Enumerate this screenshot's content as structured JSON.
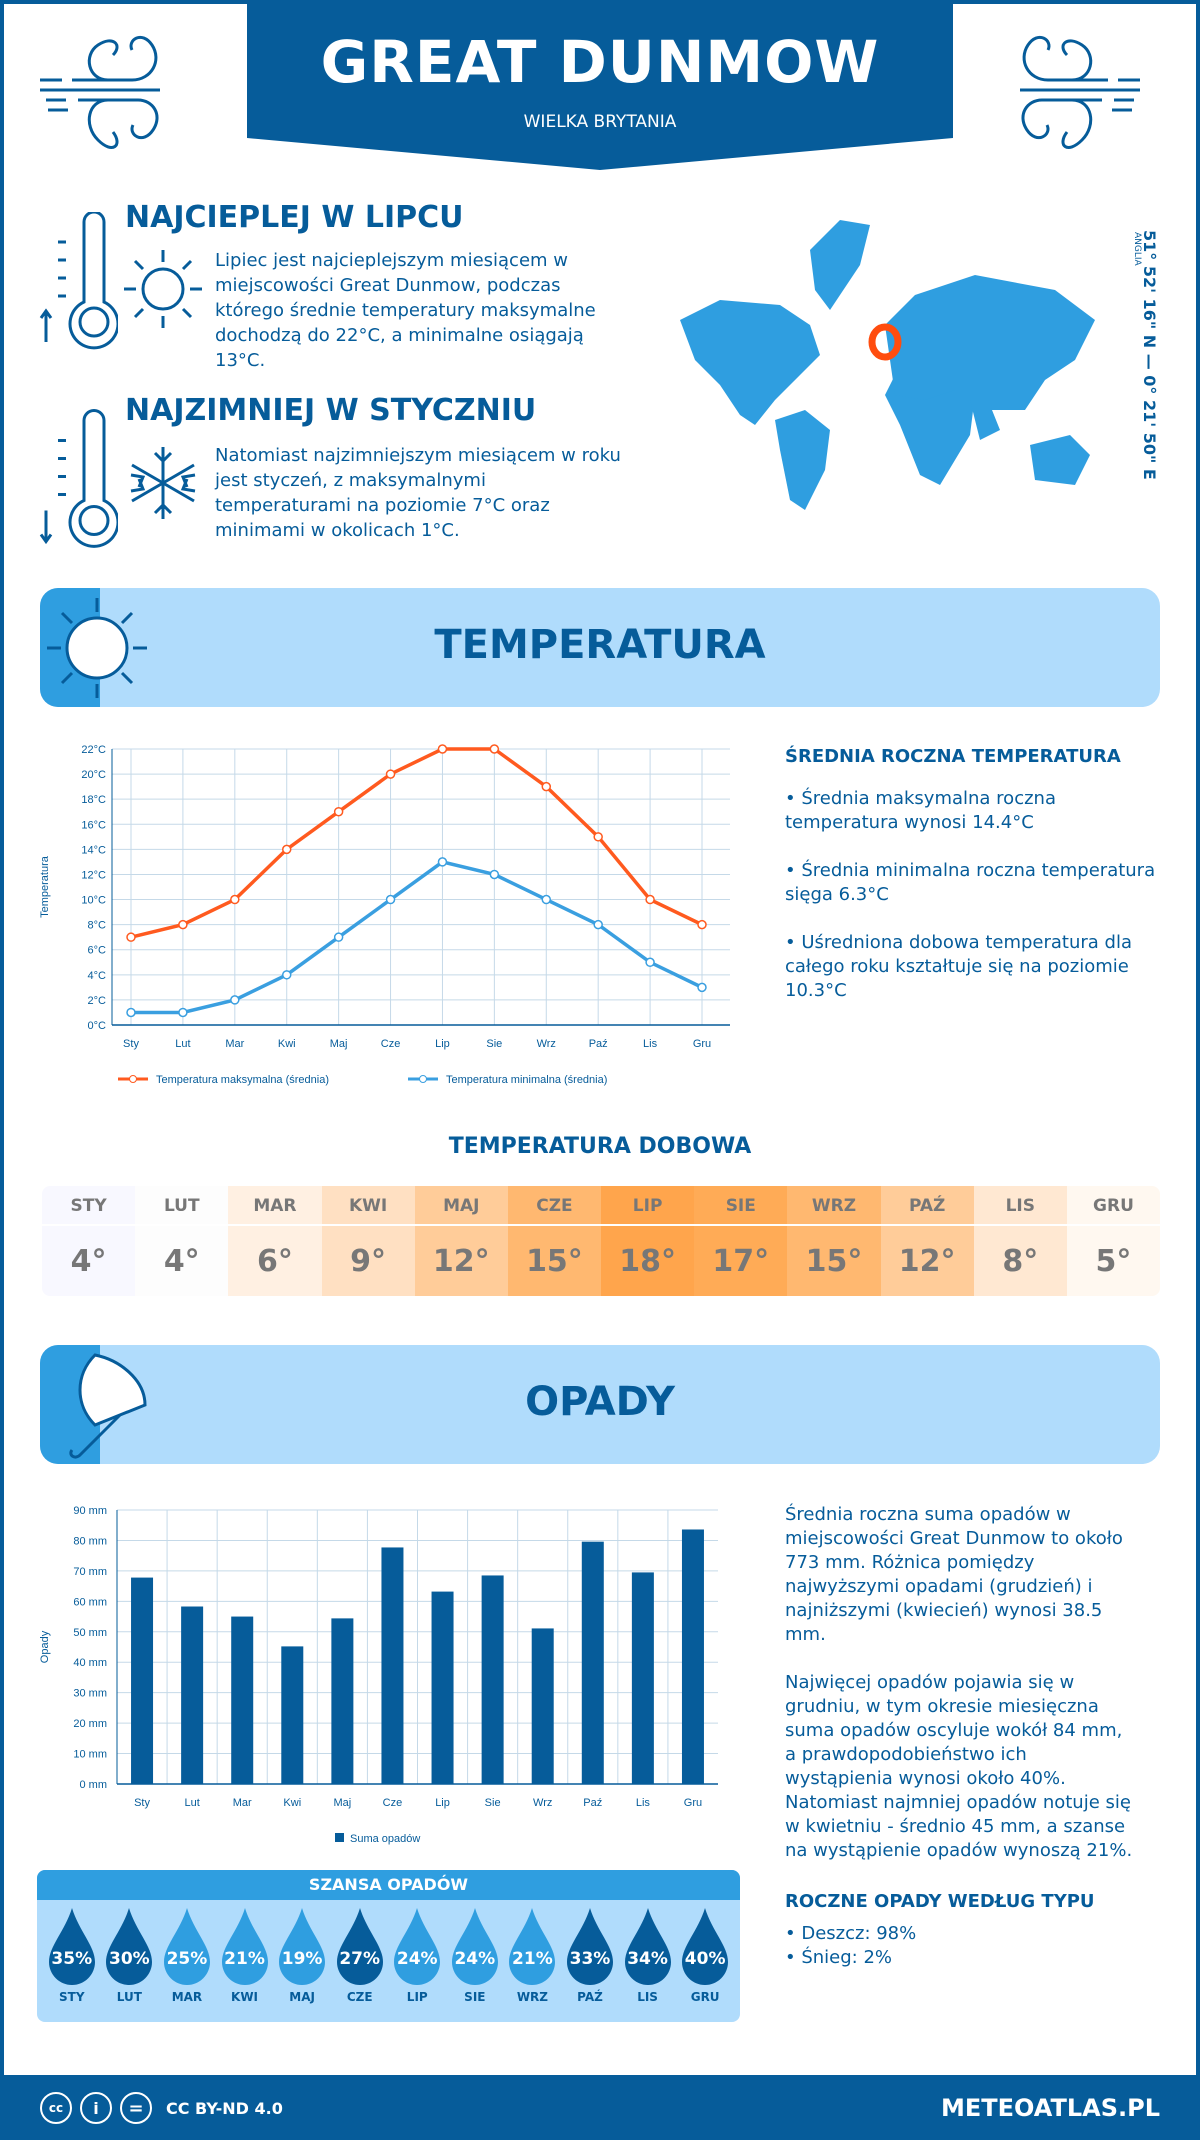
{
  "header": {
    "title": "GREAT DUNMOW",
    "subtitle": "WIELKA BRYTANIA"
  },
  "hottest": {
    "heading": "NAJCIEPLEJ W LIPCU",
    "text": "Lipiec jest najcieplejszym miesiącem w miejscowości Great Dunmow, podczas którego średnie temperatury maksymalne dochodzą do 22°C, a minimalne osiągają 13°C."
  },
  "coldest": {
    "heading": "NAJZIMNIEJ W STYCZNIU",
    "text": "Natomiast najzimniejszym miesiącem w roku jest styczeń, z maksymalnymi temperaturami na poziomie 7°C oraz minimami w okolicach 1°C."
  },
  "location": {
    "coords": "51° 52' 16\" N — 0° 21' 50\" E",
    "region": "ANGLIA"
  },
  "temperature": {
    "section_title": "TEMPERATURA",
    "summary_heading": "ŚREDNIA ROCZNA TEMPERATURA",
    "bullets": [
      "• Średnia maksymalna roczna temperatura wynosi 14.4°C",
      "• Średnia minimalna roczna temperatura sięga 6.3°C",
      "• Uśredniona dobowa temperatura dla całego roku kształtuje się na poziomie 10.3°C"
    ],
    "daily_title": "TEMPERATURA DOBOWA",
    "daily": [
      {
        "m": "STY",
        "v": "4°",
        "c": "#f8f8ff"
      },
      {
        "m": "LUT",
        "v": "4°",
        "c": "#fdfdfd"
      },
      {
        "m": "MAR",
        "v": "6°",
        "c": "#fff0e2"
      },
      {
        "m": "KWI",
        "v": "9°",
        "c": "#ffe0c2"
      },
      {
        "m": "MAJ",
        "v": "12°",
        "c": "#ffcc99"
      },
      {
        "m": "CZE",
        "v": "15°",
        "c": "#ffb870"
      },
      {
        "m": "LIP",
        "v": "18°",
        "c": "#ffa54c"
      },
      {
        "m": "SIE",
        "v": "17°",
        "c": "#ffab56"
      },
      {
        "m": "WRZ",
        "v": "15°",
        "c": "#ffb870"
      },
      {
        "m": "PAŹ",
        "v": "12°",
        "c": "#ffcc99"
      },
      {
        "m": "LIS",
        "v": "8°",
        "c": "#ffe8d2"
      },
      {
        "m": "GRU",
        "v": "5°",
        "c": "#fff8f0"
      }
    ]
  },
  "precip": {
    "section_title": "OPADY",
    "text1": "Średnia roczna suma opadów w miejscowości Great Dunmow to około 773 mm. Różnica pomiędzy najwyższymi opadami (grudzień) i najniższymi (kwiecień) wynosi 38.5 mm.",
    "text2": "Najwięcej opadów pojawia się w grudniu, w tym okresie miesięczna suma opadów oscyluje wokół 84 mm, a prawdopodobieństwo ich wystąpienia wynosi około 40%. Natomiast najmniej opadów notuje się w kwietniu - średnio 45 mm, a szanse na wystąpienie opadów wynoszą 21%.",
    "chance_title": "SZANSA OPADÓW",
    "chance": [
      {
        "m": "STY",
        "v": "35%",
        "dark": true
      },
      {
        "m": "LUT",
        "v": "30%",
        "dark": true
      },
      {
        "m": "MAR",
        "v": "25%",
        "dark": false
      },
      {
        "m": "KWI",
        "v": "21%",
        "dark": false
      },
      {
        "m": "MAJ",
        "v": "19%",
        "dark": false
      },
      {
        "m": "CZE",
        "v": "27%",
        "dark": true
      },
      {
        "m": "LIP",
        "v": "24%",
        "dark": false
      },
      {
        "m": "SIE",
        "v": "24%",
        "dark": false
      },
      {
        "m": "WRZ",
        "v": "21%",
        "dark": false
      },
      {
        "m": "PAŹ",
        "v": "33%",
        "dark": true
      },
      {
        "m": "LIS",
        "v": "34%",
        "dark": true
      },
      {
        "m": "GRU",
        "v": "40%",
        "dark": true
      }
    ],
    "type_heading": "ROCZNE OPADY WEDŁUG TYPU",
    "types": [
      "• Deszcz: 98%",
      "• Śnieg: 2%"
    ]
  },
  "footer": {
    "license": "CC BY-ND 4.0",
    "site": "METEOATLAS.PL"
  },
  "colors": {
    "dark_blue": "#065c9a",
    "light_blue": "#2f9ee0",
    "band": "#b0dcfc",
    "max_line": "#ff5a1f",
    "min_line": "#3a9fe0"
  },
  "chart_data": [
    {
      "type": "line",
      "ylabel": "Temperatura",
      "ylim": [
        0,
        22
      ],
      "yticks": [
        "0°C",
        "2°C",
        "4°C",
        "6°C",
        "8°C",
        "10°C",
        "12°C",
        "14°C",
        "16°C",
        "18°C",
        "20°C",
        "22°C"
      ],
      "grid": true,
      "legend": "bottom",
      "categories": [
        "Sty",
        "Lut",
        "Mar",
        "Kwi",
        "Maj",
        "Cze",
        "Lip",
        "Sie",
        "Wrz",
        "Paź",
        "Lis",
        "Gru"
      ],
      "series": [
        {
          "name": "Temperatura maksymalna (średnia)",
          "values": [
            7,
            8,
            10,
            14,
            17,
            20,
            22,
            22,
            19,
            15,
            10,
            8
          ]
        },
        {
          "name": "Temperatura minimalna (średnia)",
          "values": [
            1,
            1,
            2,
            4,
            7,
            10,
            13,
            12,
            10,
            8,
            5,
            3
          ]
        }
      ]
    },
    {
      "type": "bar",
      "ylabel": "Opady",
      "ylim": [
        0,
        90
      ],
      "yticks": [
        "0 mm",
        "10 mm",
        "20 mm",
        "30 mm",
        "40 mm",
        "50 mm",
        "60 mm",
        "70 mm",
        "80 mm",
        "90 mm"
      ],
      "grid": true,
      "legend": "bottom",
      "categories": [
        "Sty",
        "Lut",
        "Mar",
        "Kwi",
        "Maj",
        "Cze",
        "Lip",
        "Sie",
        "Wrz",
        "Paź",
        "Lis",
        "Gru"
      ],
      "series": [
        {
          "name": "Suma opadów",
          "values": [
            67.8,
            58.3,
            55,
            45.2,
            54.4,
            77.7,
            63.2,
            68.5,
            51.1,
            79.6,
            69.5,
            83.6
          ]
        }
      ]
    }
  ]
}
